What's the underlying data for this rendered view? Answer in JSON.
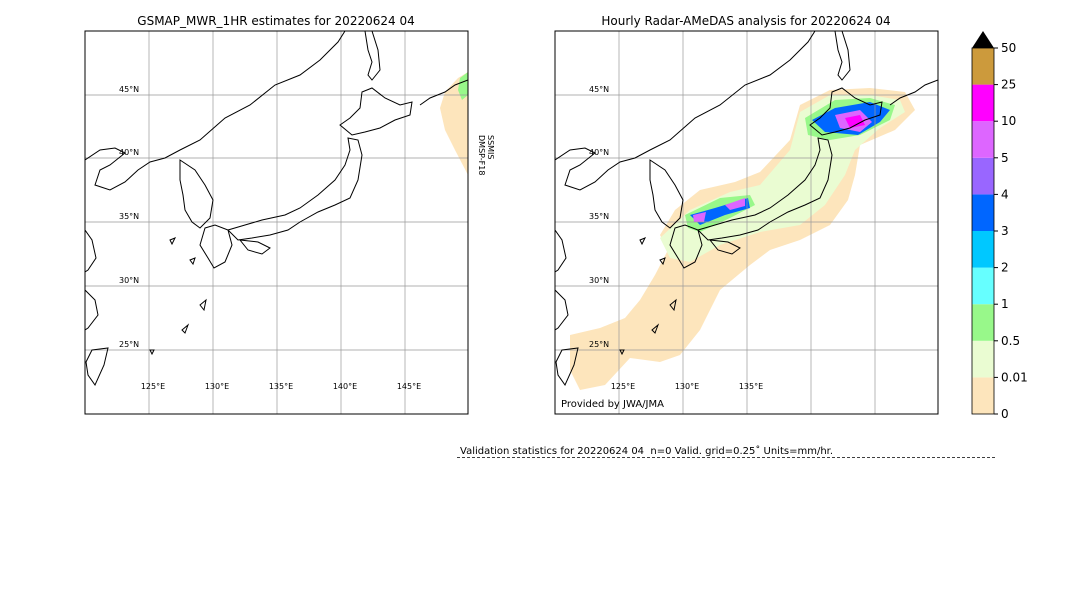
{
  "panels": [
    {
      "title": "GSMAP_MWR_1HR estimates for 20220624 04",
      "lat_labels": [
        "45°N",
        "40°N",
        "35°N",
        "30°N",
        "25°N"
      ],
      "lon_labels": [
        "125°E",
        "130°E",
        "135°E",
        "140°E",
        "145°E"
      ],
      "side_label": [
        "DMSP-F18",
        "SSMIS"
      ]
    },
    {
      "title": "Hourly Radar-AMeDAS analysis for 20220624 04",
      "lat_labels": [
        "45°N",
        "40°N",
        "35°N",
        "30°N",
        "25°N"
      ],
      "lon_labels": [
        "125°E",
        "130°E",
        "135°E"
      ],
      "credit": "Provided by JWA/JMA"
    }
  ],
  "colorbar": {
    "labels": [
      0,
      0.01,
      0.5,
      1,
      2,
      3,
      4,
      5,
      10,
      25,
      50
    ],
    "colors": [
      "#fde5bc",
      "#eafcd2",
      "#98f88a",
      "#66ffff",
      "#00c8ff",
      "#0066ff",
      "#9966ff",
      "#dd66ff",
      "#ff00ff",
      "#cc9a3c"
    ]
  },
  "validation": "Validation statistics for 20220624 04  n=0 Valid. grid=0.25˚ Units=mm/hr."
}
